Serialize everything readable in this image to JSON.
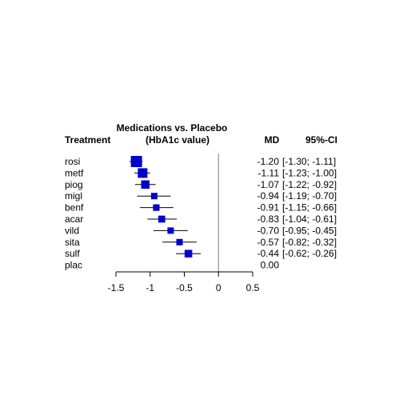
{
  "chart_data": {
    "type": "forest",
    "title_line1": "Medications vs. Placebo",
    "title_line2": "(HbA1c value)",
    "column_headers": {
      "treatment": "Treatment",
      "md": "MD",
      "ci": "95%-CI"
    },
    "rows": [
      {
        "treatment": "rosi",
        "md": -1.2,
        "lower": -1.3,
        "upper": -1.11,
        "md_text": "-1.20",
        "ci_text": "[-1.30; -1.11]",
        "weight": 1.0
      },
      {
        "treatment": "metf",
        "md": -1.11,
        "lower": -1.23,
        "upper": -1.0,
        "md_text": "-1.11",
        "ci_text": "[-1.23; -1.00]",
        "weight": 0.8
      },
      {
        "treatment": "piog",
        "md": -1.07,
        "lower": -1.22,
        "upper": -0.92,
        "md_text": "-1.07",
        "ci_text": "[-1.22; -0.92]",
        "weight": 0.65
      },
      {
        "treatment": "migl",
        "md": -0.94,
        "lower": -1.19,
        "upper": -0.7,
        "md_text": "-0.94",
        "ci_text": "[-1.19; -0.70]",
        "weight": 0.4
      },
      {
        "treatment": "benf",
        "md": -0.91,
        "lower": -1.15,
        "upper": -0.66,
        "md_text": "-0.91",
        "ci_text": "[-1.15; -0.66]",
        "weight": 0.42
      },
      {
        "treatment": "acar",
        "md": -0.83,
        "lower": -1.04,
        "upper": -0.61,
        "md_text": "-0.83",
        "ci_text": "[-1.04; -0.61]",
        "weight": 0.47
      },
      {
        "treatment": "vild",
        "md": -0.7,
        "lower": -0.95,
        "upper": -0.45,
        "md_text": "-0.70",
        "ci_text": "[-0.95; -0.45]",
        "weight": 0.4
      },
      {
        "treatment": "sita",
        "md": -0.57,
        "lower": -0.82,
        "upper": -0.32,
        "md_text": "-0.57",
        "ci_text": "[-0.82; -0.32]",
        "weight": 0.4
      },
      {
        "treatment": "sulf",
        "md": -0.44,
        "lower": -0.62,
        "upper": -0.26,
        "md_text": "-0.44",
        "ci_text": "[-0.62; -0.26]",
        "weight": 0.55
      },
      {
        "treatment": "plac",
        "md": 0.0,
        "lower": null,
        "upper": null,
        "md_text": "0.00",
        "ci_text": "",
        "weight": 0
      }
    ],
    "x_ticks": [
      -1.5,
      -1,
      -0.5,
      0,
      0.5
    ],
    "x_tick_labels": [
      "-1.5",
      "-1",
      "-0.5",
      "0",
      "0.5"
    ],
    "xlim": [
      -1.5,
      0.5
    ],
    "reference_line": 0,
    "colors": {
      "square": "#0000cc",
      "ci_line": "#000000",
      "reference_line": "#7f7f7f"
    }
  }
}
